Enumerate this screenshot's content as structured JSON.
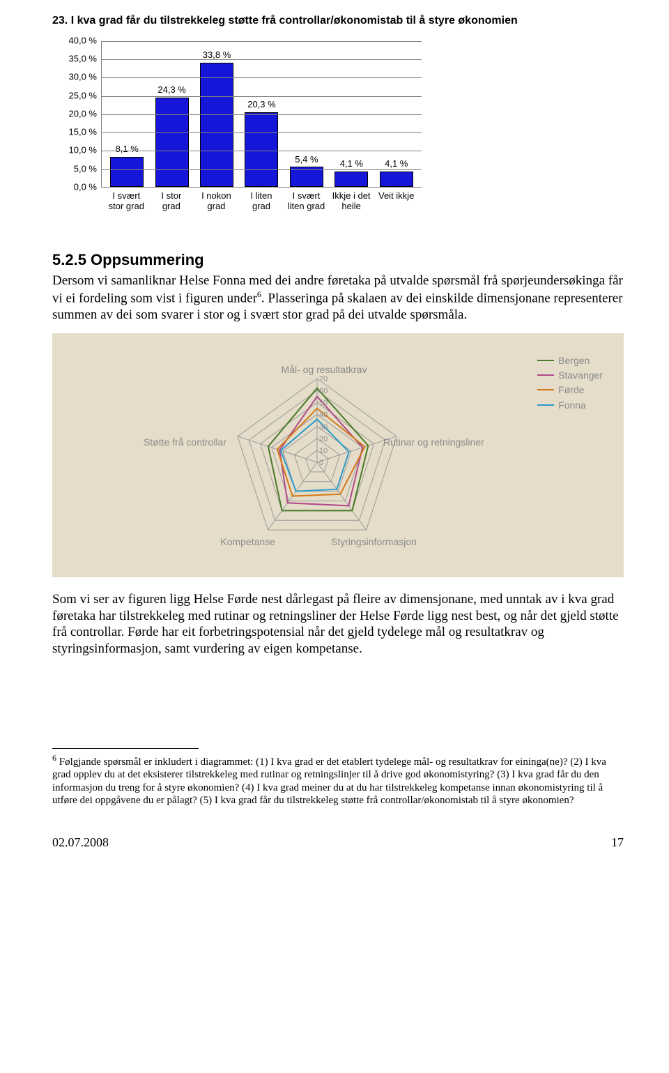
{
  "bar_chart": {
    "title": "23. I kva grad får du tilstrekkeleg støtte frå controllar/økonomistab til å styre økonomien",
    "y_ticks": [
      "0,0 %",
      "5,0 %",
      "10,0 %",
      "15,0 %",
      "20,0 %",
      "25,0 %",
      "30,0 %",
      "35,0 %",
      "40,0 %"
    ],
    "y_max": 40,
    "bar_color": "#1616d8",
    "bar_border": "#000000",
    "grid_color": "#808080",
    "categories": [
      {
        "label": "I svært stor grad",
        "value": 8.1,
        "value_label": "8,1 %"
      },
      {
        "label": "I stor grad",
        "value": 24.3,
        "value_label": "24,3 %"
      },
      {
        "label": "I nokon grad",
        "value": 33.8,
        "value_label": "33,8 %"
      },
      {
        "label": "I liten grad",
        "value": 20.3,
        "value_label": "20,3 %"
      },
      {
        "label": "I svært liten grad",
        "value": 5.4,
        "value_label": "5,4 %"
      },
      {
        "label": "Ikkje i det heile",
        "value": 4.1,
        "value_label": "4,1 %"
      },
      {
        "label": "Veit ikkje",
        "value": 4.1,
        "value_label": "4,1 %"
      }
    ]
  },
  "section": {
    "heading": "5.2.5 Oppsummering",
    "para1": "Dersom vi samanliknar Helse Fonna med dei andre føretaka på utvalde spørsmål frå spørjeundersøkinga får vi ei fordeling som vist i figuren under",
    "para1_sup": "6",
    "para1_cont": ". Plasseringa på skalaen av dei einskilde dimensjonane representerer summen av dei som svarer i stor og i svært stor grad på dei utvalde spørsmåla.",
    "para2": "Som vi ser av figuren ligg Helse Førde nest dårlegast på fleire av dimensjonane, med unntak av i kva grad føretaka har tilstrekkeleg med rutinar og retningsliner der Helse Førde ligg nest best, og når det gjeld støtte frå controllar. Førde har eit forbetringspotensial når det gjeld tydelege mål og resultatkrav og styringsinformasjon, samt vurdering av eigen kompetanse."
  },
  "radar": {
    "axes": [
      "Mål- og resultatkrav",
      "Rutinar og retningsliner",
      "Styringsinformasjon",
      "Kompetanse",
      "Støtte frå controllar"
    ],
    "ticks": [
      "0",
      "10",
      "20",
      "30",
      "40",
      "50",
      "60",
      "70"
    ],
    "max": 70,
    "grid_color": "#9a9a9a",
    "label_color": "#8a8a8a",
    "background": "#e5ddc9",
    "series": [
      {
        "name": "Bergen",
        "color": "#4a7a2a",
        "values": [
          62,
          45,
          50,
          50,
          43
        ]
      },
      {
        "name": "Stavanger",
        "color": "#b04a8a",
        "values": [
          55,
          40,
          45,
          42,
          33
        ]
      },
      {
        "name": "Førde",
        "color": "#d47a1a",
        "values": [
          45,
          42,
          33,
          35,
          35
        ]
      },
      {
        "name": "Fonna",
        "color": "#2a9ac8",
        "values": [
          36,
          28,
          28,
          30,
          32
        ]
      }
    ]
  },
  "footnote": {
    "marker": "6",
    "text": " Følgjande spørsmål er inkludert i diagrammet: (1) I kva grad er det etablert tydelege mål- og resultatkrav for eininga(ne)? (2) I kva grad opplev du at det eksisterer tilstrekkeleg med rutinar og retningslinjer til å drive god økonomistyring? (3) I kva grad får du den informasjon du treng for å styre økonomien? (4) I kva grad meiner du at du har tilstrekkeleg kompetanse innan økonomistyring til å utføre dei oppgåvene du er pålagt? (5) I kva grad får du tilstrekkeleg støtte frå controllar/økonomistab til å styre økonomien?"
  },
  "footer": {
    "date": "02.07.2008",
    "page": "17"
  }
}
